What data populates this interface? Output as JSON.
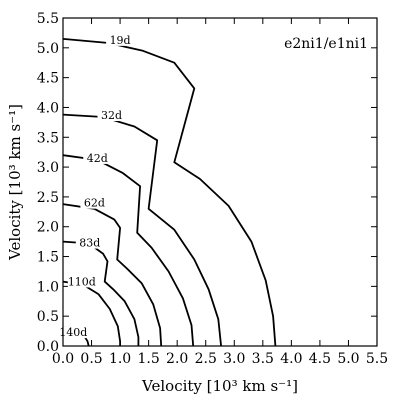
{
  "chart_data": {
    "type": "line",
    "title": "",
    "panel_label": "e2ni1/e1ni1",
    "xlabel": "Velocity [10³ km s⁻¹]",
    "ylabel": "Velocity [10³ km s⁻¹]",
    "xlim": [
      0,
      5.5
    ],
    "ylim": [
      0,
      5.5
    ],
    "xticks": [
      "0.0",
      "0.5",
      "1.0",
      "1.5",
      "2.0",
      "2.5",
      "3.0",
      "3.5",
      "4.0",
      "4.5",
      "5.0",
      "5.5"
    ],
    "yticks": [
      "0.0",
      "0.5",
      "1.0",
      "1.5",
      "2.0",
      "2.5",
      "3.0",
      "3.5",
      "4.0",
      "4.5",
      "5.0",
      "5.5"
    ],
    "grid": false,
    "series": [
      {
        "name": "19d",
        "label_at": [
          1.0,
          5.1
        ],
        "points": [
          [
            0,
            5.15
          ],
          [
            0.8,
            5.08
          ],
          [
            1.4,
            4.95
          ],
          [
            1.95,
            4.75
          ],
          [
            2.3,
            4.32
          ],
          [
            1.95,
            3.08
          ],
          [
            2.4,
            2.8
          ],
          [
            2.9,
            2.35
          ],
          [
            3.3,
            1.75
          ],
          [
            3.55,
            1.1
          ],
          [
            3.68,
            0.5
          ],
          [
            3.72,
            0
          ]
        ]
      },
      {
        "name": "32d",
        "label_at": [
          0.85,
          3.84
        ],
        "points": [
          [
            0,
            3.88
          ],
          [
            0.7,
            3.84
          ],
          [
            1.25,
            3.68
          ],
          [
            1.65,
            3.45
          ],
          [
            1.5,
            2.3
          ],
          [
            1.95,
            1.95
          ],
          [
            2.3,
            1.45
          ],
          [
            2.55,
            0.95
          ],
          [
            2.72,
            0.45
          ],
          [
            2.77,
            0
          ]
        ]
      },
      {
        "name": "42d",
        "label_at": [
          0.6,
          3.12
        ],
        "points": [
          [
            0,
            3.2
          ],
          [
            0.6,
            3.12
          ],
          [
            1.05,
            2.9
          ],
          [
            1.35,
            2.68
          ],
          [
            1.3,
            1.9
          ],
          [
            1.55,
            1.65
          ],
          [
            1.85,
            1.25
          ],
          [
            2.1,
            0.8
          ],
          [
            2.25,
            0.35
          ],
          [
            2.28,
            0
          ]
        ]
      },
      {
        "name": "62d",
        "label_at": [
          0.55,
          2.37
        ],
        "points": [
          [
            0,
            2.38
          ],
          [
            0.55,
            2.3
          ],
          [
            0.9,
            2.12
          ],
          [
            1.0,
            1.98
          ],
          [
            0.95,
            1.45
          ],
          [
            1.12,
            1.3
          ],
          [
            1.38,
            1.05
          ],
          [
            1.58,
            0.7
          ],
          [
            1.7,
            0.3
          ],
          [
            1.72,
            0
          ]
        ]
      },
      {
        "name": "83d",
        "label_at": [
          0.47,
          1.7
        ],
        "points": [
          [
            0,
            1.75
          ],
          [
            0.45,
            1.72
          ],
          [
            0.7,
            1.55
          ],
          [
            0.78,
            1.42
          ],
          [
            0.73,
            1.08
          ],
          [
            0.88,
            0.95
          ],
          [
            1.08,
            0.75
          ],
          [
            1.25,
            0.45
          ],
          [
            1.32,
            0.15
          ],
          [
            1.32,
            0
          ]
        ]
      },
      {
        "name": "110d",
        "label_at": [
          0.33,
          1.05
        ],
        "points": [
          [
            0,
            1.08
          ],
          [
            0.35,
            1.03
          ],
          [
            0.62,
            0.87
          ],
          [
            0.82,
            0.62
          ],
          [
            0.96,
            0.33
          ],
          [
            1.0,
            0.08
          ],
          [
            1.0,
            0
          ]
        ]
      },
      {
        "name": "140d",
        "label_at": [
          0.18,
          0.2
        ],
        "points": [
          [
            0,
            0.32
          ],
          [
            0.2,
            0.3
          ],
          [
            0.35,
            0.2
          ],
          [
            0.43,
            0.08
          ],
          [
            0.45,
            0
          ]
        ]
      }
    ]
  }
}
